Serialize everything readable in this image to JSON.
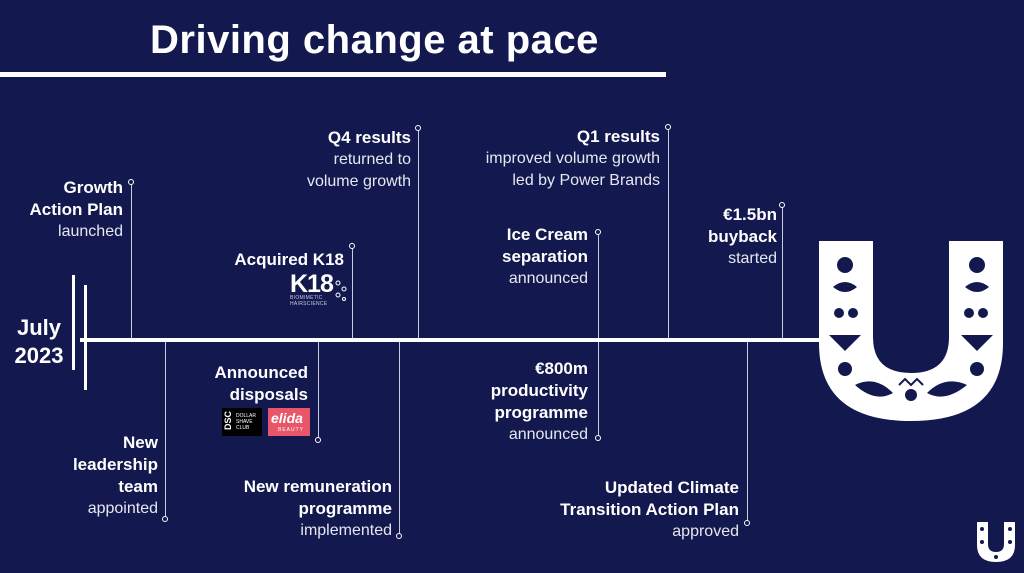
{
  "title": "Driving change at pace",
  "start_label": {
    "line1": "July",
    "line2": "2023"
  },
  "events": {
    "growth_action_plan": {
      "bold1": "Growth",
      "bold2": "Action Plan",
      "note": "launched"
    },
    "new_leadership": {
      "bold1": "New",
      "bold2": "leadership",
      "bold3": "team",
      "note": "appointed"
    },
    "k18": {
      "bold1": "Acquired K18",
      "logo_main": "K18",
      "logo_sub1": "BIOMIMETIC",
      "logo_sub2": "HAIRSCIENCE"
    },
    "disposals": {
      "bold1": "Announced",
      "bold2": "disposals",
      "dsc_mark": "DSC",
      "dsc_words": "DOLLAR SHAVE CLUB",
      "elida_mark": "elida",
      "elida_sub": "BEAUTY"
    },
    "q4_results": {
      "bold1": "Q4 results",
      "note1": "returned to",
      "note2": "volume growth"
    },
    "remuneration": {
      "bold1": "New remuneration",
      "bold2": "programme",
      "note": "implemented"
    },
    "ice_cream": {
      "bold1": "Ice Cream",
      "bold2": "separation",
      "note": "announced"
    },
    "productivity": {
      "bold1": "€800m",
      "bold2": "productivity",
      "bold3": "programme",
      "note": "announced"
    },
    "q1_results": {
      "bold1": "Q1 results",
      "note1": "improved volume growth",
      "note2": "led by Power Brands"
    },
    "climate": {
      "bold1": "Updated Climate",
      "bold2": "Transition Action Plan",
      "note": "approved"
    },
    "buyback": {
      "bold1": "€1.5bn",
      "bold2": "buyback",
      "note": "started"
    }
  },
  "colors": {
    "background": "#13194e",
    "foreground": "#ffffff"
  },
  "icons": {
    "brand_logo": "unilever-u-logo-icon",
    "corner_logo": "unilever-small-logo-icon"
  }
}
